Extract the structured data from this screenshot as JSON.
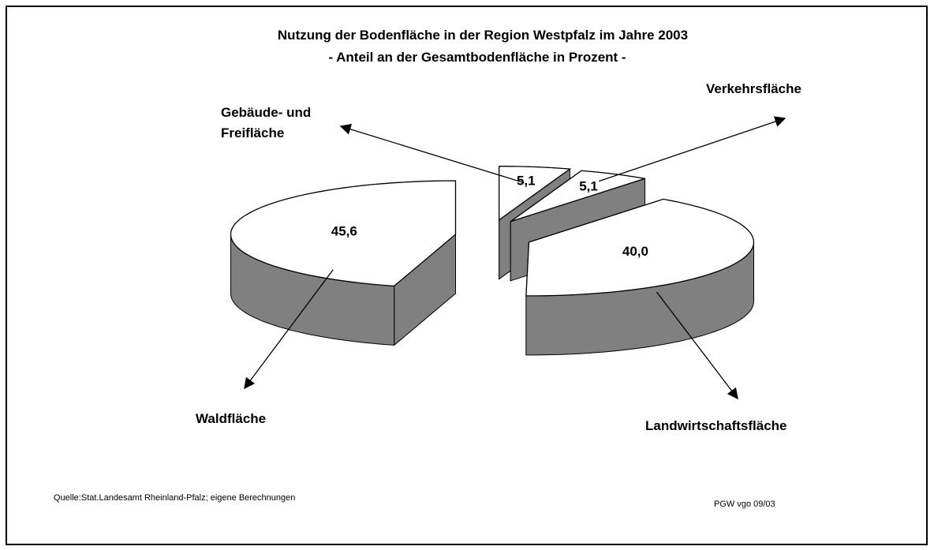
{
  "chart_data": {
    "type": "pie3d",
    "title": "Nutzung der Bodenfläche in der Region Westpfalz im Jahre 2003",
    "subtitle": "- Anteil an der Gesamtbodenfläche  in Prozent -",
    "categories": [
      "Waldfläche",
      "Gebäude- und Freifläche",
      "Verkehrsfläche",
      "Landwirtschaftsfläche"
    ],
    "values": [
      45.6,
      5.1,
      5.1,
      40.0
    ],
    "value_labels": [
      "45,6",
      "5,1",
      "5,1",
      "40,0"
    ],
    "colors": {
      "top": "#ffffff",
      "side": "#808080"
    },
    "source": "Quelle:Stat.Landesamt Rheinland-Pfalz; eigene Berechnungen",
    "credit": "PGW vgo 09/03"
  }
}
